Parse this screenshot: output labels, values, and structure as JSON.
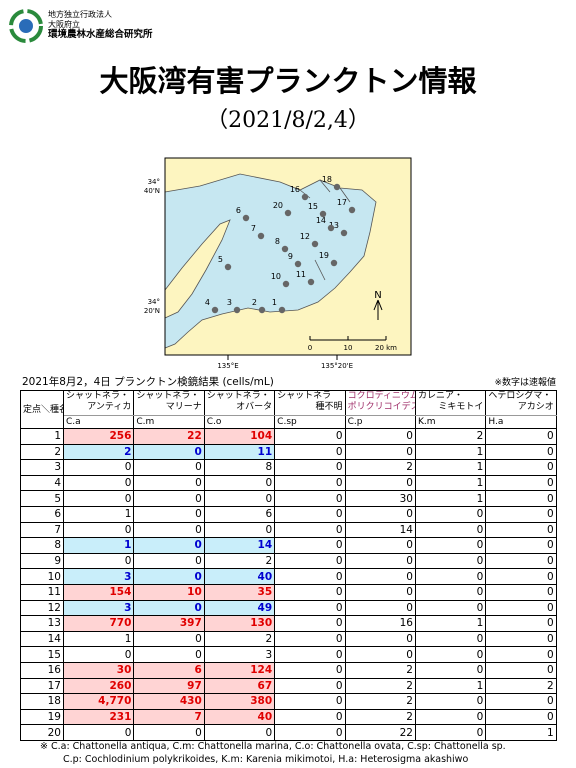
{
  "header": {
    "org_lines": [
      "地方独立行政法人",
      "大阪府立",
      "環境農林水産総合研究所"
    ],
    "title": "大阪湾有害プランクトン情報",
    "subtitle": "（2021/8/2,4）"
  },
  "map": {
    "lat_labels": [
      [
        "34°",
        "40'N"
      ],
      [
        "34°",
        "20'N"
      ]
    ],
    "lon_labels": [
      "135°E",
      "135°20'E"
    ],
    "scale_labels": [
      "0",
      "10",
      "20 km"
    ],
    "north": "N",
    "stations": [
      "1",
      "2",
      "3",
      "4",
      "5",
      "6",
      "7",
      "8",
      "9",
      "10",
      "11",
      "12",
      "13",
      "14",
      "15",
      "16",
      "17",
      "18",
      "19",
      "20"
    ]
  },
  "table": {
    "caption": "2021年8月2，4日 プランクトン検鏡結果 (cells/mL)",
    "note": "※数字は速報値",
    "corner": "定点＼種名",
    "columns": [
      {
        "name": [
          "シャットネラ・",
          "アンティカ"
        ],
        "abbr": "C.a"
      },
      {
        "name": [
          "シャットネラ・",
          "マリーナ"
        ],
        "abbr": "C.m"
      },
      {
        "name": [
          "シャットネラ・",
          "オバータ"
        ],
        "abbr": "C.o"
      },
      {
        "name": [
          "シャットネラ",
          "種不明"
        ],
        "abbr": "C.sp"
      },
      {
        "name": [
          "コクロディニウム・",
          "ポリクリコイデス"
        ],
        "abbr": "C.p"
      },
      {
        "name": [
          "カレニア・",
          "ミキモトイ"
        ],
        "abbr": "K.m"
      },
      {
        "name": [
          "ヘテロシグマ・",
          "アカシオ"
        ],
        "abbr": "H.a"
      }
    ],
    "rows": [
      {
        "station": "1",
        "values": [
          256,
          22,
          104,
          0,
          0,
          2,
          0
        ],
        "highlight": "red"
      },
      {
        "station": "2",
        "values": [
          2,
          0,
          11,
          0,
          0,
          1,
          0
        ],
        "highlight": "blue"
      },
      {
        "station": "3",
        "values": [
          0,
          0,
          8,
          0,
          2,
          1,
          0
        ]
      },
      {
        "station": "4",
        "values": [
          0,
          0,
          0,
          0,
          0,
          1,
          0
        ]
      },
      {
        "station": "5",
        "values": [
          0,
          0,
          0,
          0,
          30,
          1,
          0
        ]
      },
      {
        "station": "6",
        "values": [
          1,
          0,
          6,
          0,
          0,
          0,
          0
        ]
      },
      {
        "station": "7",
        "values": [
          0,
          0,
          0,
          0,
          14,
          0,
          0
        ]
      },
      {
        "station": "8",
        "values": [
          1,
          0,
          14,
          0,
          0,
          0,
          0
        ],
        "highlight": "blue"
      },
      {
        "station": "9",
        "values": [
          0,
          0,
          2,
          0,
          0,
          0,
          0
        ]
      },
      {
        "station": "10",
        "values": [
          3,
          0,
          40,
          0,
          0,
          0,
          0
        ],
        "highlight": "blue"
      },
      {
        "station": "11",
        "values": [
          154,
          10,
          35,
          0,
          0,
          0,
          0
        ],
        "highlight": "red"
      },
      {
        "station": "12",
        "values": [
          3,
          0,
          49,
          0,
          0,
          0,
          0
        ],
        "highlight": "blue"
      },
      {
        "station": "13",
        "values": [
          770,
          397,
          130,
          0,
          16,
          1,
          0
        ],
        "highlight": "red"
      },
      {
        "station": "14",
        "values": [
          1,
          0,
          2,
          0,
          0,
          0,
          0
        ]
      },
      {
        "station": "15",
        "values": [
          0,
          0,
          3,
          0,
          0,
          0,
          0
        ]
      },
      {
        "station": "16",
        "values": [
          30,
          6,
          124,
          0,
          2,
          0,
          0
        ],
        "highlight": "red"
      },
      {
        "station": "17",
        "values": [
          260,
          97,
          67,
          0,
          2,
          1,
          2
        ],
        "highlight": "red"
      },
      {
        "station": "18",
        "values": [
          "4,770",
          430,
          380,
          0,
          2,
          0,
          0
        ],
        "highlight": "red"
      },
      {
        "station": "19",
        "values": [
          231,
          7,
          40,
          0,
          2,
          0,
          0
        ],
        "highlight": "red"
      },
      {
        "station": "20",
        "values": [
          0,
          0,
          0,
          0,
          22,
          0,
          1
        ]
      }
    ]
  },
  "footnote": [
    "※ C.a: Chattonella antiqua, C.m: Chattonella marina, C.o: Chattonella ovata, C.sp: Chattonella sp.",
    "C.p: Cochlodinium polykrikoides,  K.m: Karenia mikimotoi,  H.a: Heterosigma akashiwo"
  ]
}
